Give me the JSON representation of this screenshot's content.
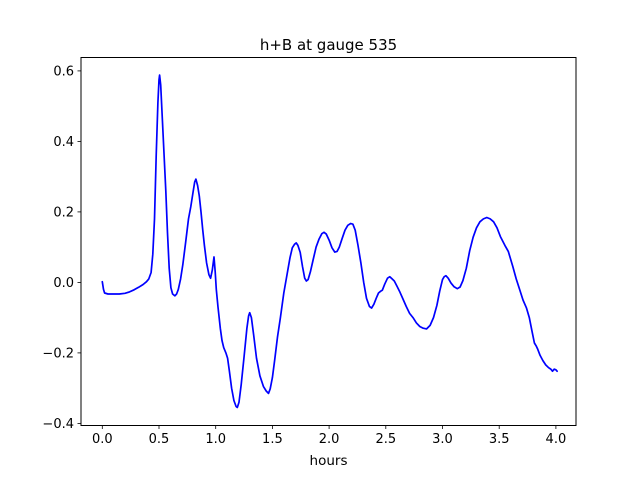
{
  "figure": {
    "background": "#ffffff",
    "frame_color": "#000000"
  },
  "chart_data": {
    "type": "line",
    "title": "h+B at gauge 535",
    "xlabel": "hours",
    "ylabel": "",
    "grid": false,
    "legend": null,
    "line_color": "#0000ff",
    "line_width": 1.7,
    "xlim": [
      -0.188,
      4.177
    ],
    "ylim": [
      -0.406,
      0.638
    ],
    "x_ticks": [
      0.0,
      0.5,
      1.0,
      1.5,
      2.0,
      2.5,
      3.0,
      3.5,
      4.0
    ],
    "x_tick_labels": [
      "0.0",
      "0.5",
      "1.0",
      "1.5",
      "2.0",
      "2.5",
      "3.0",
      "3.5",
      "4.0"
    ],
    "y_ticks": [
      -0.4,
      -0.2,
      0.0,
      0.2,
      0.4,
      0.6
    ],
    "y_tick_labels": [
      "−0.4",
      "−0.2",
      "0.0",
      "0.2",
      "0.4",
      "0.6"
    ],
    "series": [
      {
        "name": "h+B",
        "x": [
          0.0,
          0.01,
          0.02,
          0.05,
          0.1,
          0.15,
          0.2,
          0.24,
          0.28,
          0.32,
          0.36,
          0.39,
          0.41,
          0.43,
          0.445,
          0.46,
          0.475,
          0.49,
          0.5,
          0.505,
          0.515,
          0.53,
          0.545,
          0.56,
          0.575,
          0.59,
          0.605,
          0.62,
          0.64,
          0.655,
          0.67,
          0.69,
          0.71,
          0.735,
          0.76,
          0.78,
          0.8,
          0.815,
          0.825,
          0.84,
          0.855,
          0.87,
          0.885,
          0.9,
          0.92,
          0.94,
          0.955,
          0.97,
          0.985,
          0.995,
          1.005,
          1.02,
          1.04,
          1.055,
          1.07,
          1.09,
          1.105,
          1.12,
          1.14,
          1.16,
          1.18,
          1.19,
          1.205,
          1.225,
          1.25,
          1.275,
          1.29,
          1.3,
          1.315,
          1.335,
          1.36,
          1.39,
          1.42,
          1.445,
          1.465,
          1.48,
          1.5,
          1.52,
          1.545,
          1.57,
          1.6,
          1.63,
          1.655,
          1.675,
          1.695,
          1.71,
          1.725,
          1.745,
          1.765,
          1.785,
          1.8,
          1.815,
          1.835,
          1.86,
          1.885,
          1.91,
          1.935,
          1.955,
          1.975,
          2.0,
          2.025,
          2.05,
          2.07,
          2.09,
          2.115,
          2.14,
          2.165,
          2.19,
          2.21,
          2.23,
          2.255,
          2.28,
          2.305,
          2.33,
          2.355,
          2.375,
          2.395,
          2.415,
          2.435,
          2.455,
          2.47,
          2.49,
          2.515,
          2.535,
          2.555,
          2.575,
          2.6,
          2.625,
          2.65,
          2.68,
          2.71,
          2.74,
          2.77,
          2.8,
          2.83,
          2.86,
          2.89,
          2.92,
          2.95,
          2.975,
          3.0,
          3.015,
          3.03,
          3.05,
          3.075,
          3.1,
          3.13,
          3.155,
          3.18,
          3.21,
          3.24,
          3.27,
          3.3,
          3.33,
          3.36,
          3.39,
          3.42,
          3.45,
          3.48,
          3.51,
          3.55,
          3.58,
          3.62,
          3.65,
          3.68,
          3.71,
          3.74,
          3.765,
          3.79,
          3.81,
          3.825,
          3.84,
          3.86,
          3.885,
          3.91,
          3.935,
          3.955,
          3.97,
          3.985,
          4.0,
          4.01
        ],
        "y": [
          0.002,
          -0.02,
          -0.03,
          -0.033,
          -0.033,
          -0.033,
          -0.031,
          -0.027,
          -0.021,
          -0.014,
          -0.006,
          0.002,
          0.01,
          0.028,
          0.08,
          0.18,
          0.36,
          0.51,
          0.575,
          0.588,
          0.56,
          0.46,
          0.36,
          0.26,
          0.14,
          0.04,
          -0.015,
          -0.033,
          -0.038,
          -0.033,
          -0.02,
          0.01,
          0.05,
          0.115,
          0.18,
          0.215,
          0.255,
          0.285,
          0.293,
          0.275,
          0.245,
          0.2,
          0.15,
          0.105,
          0.055,
          0.022,
          0.012,
          0.035,
          0.072,
          0.03,
          -0.02,
          -0.07,
          -0.13,
          -0.165,
          -0.185,
          -0.2,
          -0.215,
          -0.25,
          -0.3,
          -0.335,
          -0.352,
          -0.355,
          -0.34,
          -0.29,
          -0.21,
          -0.13,
          -0.095,
          -0.086,
          -0.1,
          -0.15,
          -0.215,
          -0.265,
          -0.295,
          -0.308,
          -0.315,
          -0.302,
          -0.27,
          -0.22,
          -0.155,
          -0.1,
          -0.03,
          0.025,
          0.07,
          0.098,
          0.108,
          0.112,
          0.105,
          0.085,
          0.045,
          0.012,
          0.004,
          0.008,
          0.03,
          0.065,
          0.1,
          0.122,
          0.138,
          0.142,
          0.137,
          0.12,
          0.098,
          0.086,
          0.088,
          0.1,
          0.125,
          0.148,
          0.162,
          0.167,
          0.165,
          0.148,
          0.105,
          0.055,
          0.0,
          -0.045,
          -0.068,
          -0.073,
          -0.062,
          -0.045,
          -0.03,
          -0.025,
          -0.022,
          -0.005,
          0.012,
          0.016,
          0.01,
          0.004,
          -0.012,
          -0.028,
          -0.046,
          -0.068,
          -0.088,
          -0.1,
          -0.115,
          -0.125,
          -0.13,
          -0.132,
          -0.122,
          -0.1,
          -0.065,
          -0.025,
          0.008,
          0.016,
          0.019,
          0.012,
          -0.002,
          -0.012,
          -0.018,
          -0.013,
          0.005,
          0.04,
          0.09,
          0.128,
          0.155,
          0.172,
          0.18,
          0.184,
          0.18,
          0.172,
          0.155,
          0.13,
          0.105,
          0.088,
          0.045,
          0.01,
          -0.02,
          -0.05,
          -0.072,
          -0.1,
          -0.14,
          -0.172,
          -0.18,
          -0.19,
          -0.207,
          -0.222,
          -0.234,
          -0.242,
          -0.246,
          -0.252,
          -0.246,
          -0.248,
          -0.252
        ]
      }
    ]
  }
}
